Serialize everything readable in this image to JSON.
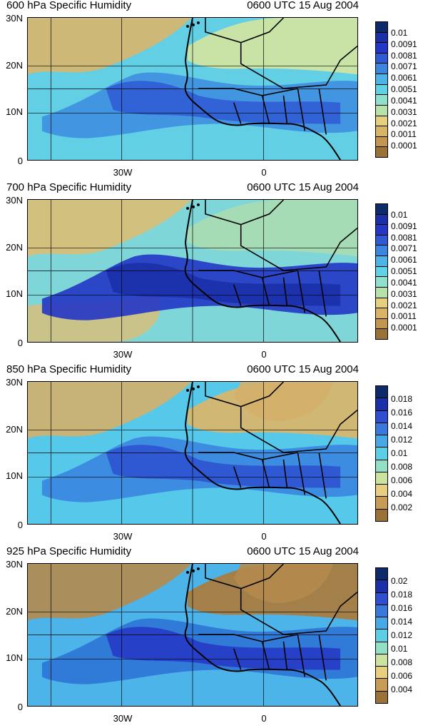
{
  "panels": [
    {
      "title": "600 hPa Specific Humidity",
      "time": "0600 UTC 15 Aug 2004",
      "colorbar_labels": [
        "0.01",
        "0.0091",
        "0.0081",
        "0.0071",
        "0.0061",
        "0.0051",
        "0.0041",
        "0.0031",
        "0.0021",
        "0.0011",
        "0.0001"
      ]
    },
    {
      "title": "700 hPa Specific Humidity",
      "time": "0600 UTC 15 Aug 2004",
      "colorbar_labels": [
        "0.01",
        "0.0091",
        "0.0081",
        "0.0071",
        "0.0061",
        "0.0051",
        "0.0041",
        "0.0031",
        "0.0021",
        "0.0011",
        "0.0001"
      ]
    },
    {
      "title": "850 hPa Specific Humidity",
      "time": "0600 UTC 15 Aug 2004",
      "colorbar_labels": [
        "0.018",
        "0.016",
        "0.014",
        "0.012",
        "0.01",
        "0.008",
        "0.006",
        "0.004",
        "0.002"
      ]
    },
    {
      "title": "925 hPa Specific Humidity",
      "time": "0600 UTC 15 Aug 2004",
      "colorbar_labels": [
        "0.02",
        "0.018",
        "0.016",
        "0.014",
        "0.012",
        "0.01",
        "0.008",
        "0.006",
        "0.004"
      ]
    }
  ],
  "axes": {
    "lat_labels": [
      "30N",
      "20N",
      "10N",
      "0"
    ],
    "lon_labels": [
      "30W",
      "0"
    ]
  },
  "colors": {
    "darkest_blue": "#0d2a6b",
    "blue": "#1f3bbf",
    "mid_blue": "#2f74d6",
    "cyan": "#4fc3e8",
    "pale_green": "#a8dcb4",
    "tan": "#e3c27a",
    "brown": "#9a7136"
  }
}
